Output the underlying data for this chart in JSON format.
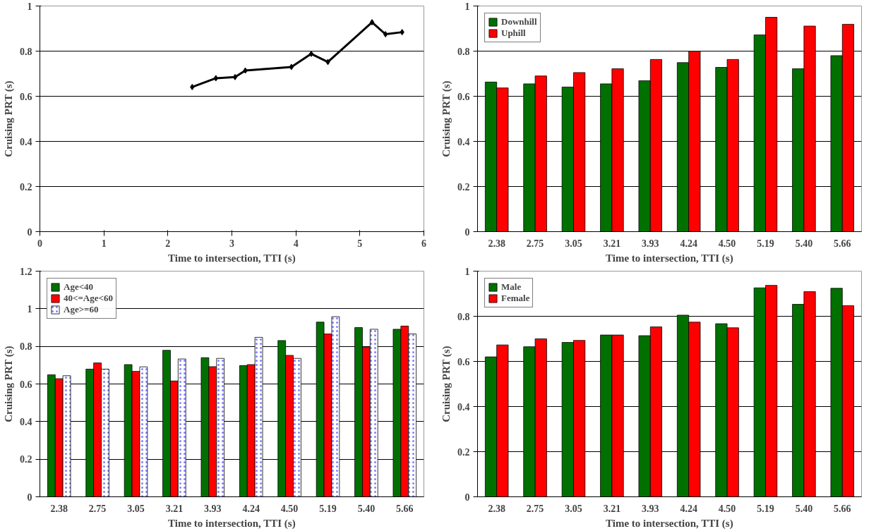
{
  "chart_data": [
    {
      "type": "line",
      "xlabel": "Time to intersection, TTI (s)",
      "ylabel": "Cruising PRT (s)",
      "xlim": [
        0,
        6
      ],
      "xticks": [
        0,
        1,
        2,
        3,
        4,
        5,
        6
      ],
      "ylim": [
        0,
        1
      ],
      "yticks": [
        0,
        0.2,
        0.4,
        0.6,
        0.8,
        1
      ],
      "grid": "y",
      "marker": "diamond",
      "line_style": "solid",
      "legend": false,
      "x": [
        2.38,
        2.75,
        3.05,
        3.21,
        3.93,
        4.24,
        4.5,
        5.19,
        5.4,
        5.66
      ],
      "series": [
        {
          "color": "#000000",
          "values": [
            0.641,
            0.68,
            0.685,
            0.714,
            0.73,
            0.788,
            0.752,
            0.928,
            0.875,
            0.884
          ]
        }
      ]
    },
    {
      "type": "bar",
      "xlabel": "Time to intersection, TTI (s)",
      "ylabel": "Cruising PRT (s)",
      "ylim": [
        0,
        1
      ],
      "yticks": [
        0,
        0.2,
        0.4,
        0.6,
        0.8,
        1
      ],
      "grid": "y",
      "legend": "top left",
      "categories": [
        "2.38",
        "2.75",
        "3.05",
        "3.21",
        "3.93",
        "4.24",
        "4.50",
        "5.19",
        "5.40",
        "5.66"
      ],
      "series": [
        {
          "name": "Downhill",
          "color": "#007000",
          "values": [
            0.663,
            0.655,
            0.641,
            0.655,
            0.669,
            0.749,
            0.728,
            0.872,
            0.722,
            0.78
          ]
        },
        {
          "name": "Uphill",
          "color": "#ff0000",
          "values": [
            0.637,
            0.69,
            0.705,
            0.722,
            0.763,
            0.8,
            0.763,
            0.95,
            0.911,
            0.919
          ]
        }
      ]
    },
    {
      "type": "bar",
      "xlabel": "Time to intersection, TTI (s)",
      "ylabel": "Cruising PRT (s)",
      "ylim": [
        0,
        1.2
      ],
      "yticks": [
        0,
        0.2,
        0.4,
        0.6,
        0.8,
        1,
        1.2
      ],
      "grid": "y",
      "legend": "top left",
      "categories": [
        "2.38",
        "2.75",
        "3.05",
        "3.21",
        "3.93",
        "4.24",
        "4.50",
        "5.19",
        "5.40",
        "5.66"
      ],
      "series": [
        {
          "name": "Age<40",
          "color": "#007000",
          "values": [
            0.649,
            0.679,
            0.703,
            0.779,
            0.74,
            0.698,
            0.831,
            0.929,
            0.9,
            0.891
          ]
        },
        {
          "name": "40<=Age<60",
          "color": "#ff0000",
          "values": [
            0.628,
            0.712,
            0.667,
            0.616,
            0.692,
            0.703,
            0.752,
            0.866,
            0.797,
            0.908
          ]
        },
        {
          "name": "Age>=60",
          "color": "#ffffff",
          "values": [
            0.644,
            0.679,
            0.691,
            0.733,
            0.736,
            0.848,
            0.736,
            0.958,
            0.891,
            0.866
          ]
        }
      ]
    },
    {
      "type": "bar",
      "xlabel": "Time to intersection, TTI (s)",
      "ylabel": "Cruising PRT (s)",
      "ylim": [
        0,
        1
      ],
      "yticks": [
        0,
        0.2,
        0.4,
        0.6,
        0.8,
        1
      ],
      "grid": "y",
      "legend": "top left",
      "categories": [
        "2.38",
        "2.75",
        "3.05",
        "3.21",
        "3.93",
        "4.24",
        "4.50",
        "5.19",
        "5.40",
        "5.66"
      ],
      "series": [
        {
          "name": "Male",
          "color": "#007000",
          "values": [
            0.62,
            0.665,
            0.684,
            0.717,
            0.714,
            0.805,
            0.767,
            0.926,
            0.853,
            0.924
          ]
        },
        {
          "name": "Female",
          "color": "#ff0000",
          "values": [
            0.673,
            0.7,
            0.693,
            0.717,
            0.753,
            0.774,
            0.749,
            0.937,
            0.909,
            0.847
          ]
        }
      ]
    }
  ]
}
